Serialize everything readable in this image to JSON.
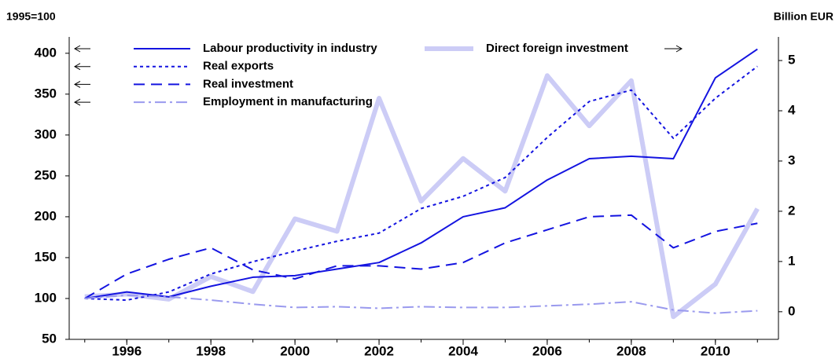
{
  "chart_data": {
    "type": "line",
    "y_label": "1995=100",
    "y2_label": "Billion EUR",
    "x": [
      1995,
      1996,
      1997,
      1998,
      1999,
      2000,
      2001,
      2002,
      2003,
      2004,
      2005,
      2006,
      2007,
      2008,
      2009,
      2010,
      2011
    ],
    "xlim": [
      1994.63,
      2011.5
    ],
    "xticks": [
      1996,
      1998,
      2000,
      2002,
      2004,
      2006,
      2008,
      2010
    ],
    "ylim": [
      50,
      420
    ],
    "yticks": [
      50,
      100,
      150,
      200,
      250,
      300,
      350,
      400
    ],
    "y2lim": [
      -0.55,
      5.47
    ],
    "y2ticks": [
      0,
      1,
      2,
      3,
      4,
      5
    ],
    "series": [
      {
        "name": "Labour productivity in industry",
        "color": "#1414e0",
        "dash": "solid",
        "axis": "y",
        "values": [
          100,
          108,
          102,
          115,
          126,
          128,
          136,
          144,
          168,
          200,
          211,
          245,
          271,
          274,
          271,
          370,
          405
        ]
      },
      {
        "name": "Real exports",
        "color": "#1414e0",
        "dash": "dot",
        "axis": "y",
        "values": [
          100,
          98,
          108,
          130,
          145,
          158,
          170,
          180,
          210,
          225,
          248,
          297,
          341,
          355,
          296,
          345,
          384
        ]
      },
      {
        "name": "Real investment",
        "color": "#1414e0",
        "dash": "dash",
        "axis": "y",
        "values": [
          100,
          130,
          148,
          162,
          135,
          124,
          140,
          140,
          136,
          144,
          168,
          184,
          200,
          202,
          162,
          182,
          192
        ]
      },
      {
        "name": "Employment in manufacturing",
        "color": "#9a9aee",
        "dash": "dashdot",
        "axis": "y",
        "values": [
          100,
          104,
          102,
          98,
          93,
          89,
          90,
          88,
          90,
          89,
          89,
          91,
          93,
          96,
          86,
          82,
          85
        ]
      },
      {
        "name": "Direct foreign investment",
        "color": "#ccccf6",
        "dash": "solid",
        "axis": "y2",
        "values": [
          0.3,
          0.35,
          0.25,
          0.7,
          0.4,
          1.85,
          1.6,
          4.25,
          2.2,
          3.05,
          2.4,
          4.7,
          3.7,
          4.6,
          -0.1,
          0.55,
          2.05
        ]
      }
    ]
  }
}
